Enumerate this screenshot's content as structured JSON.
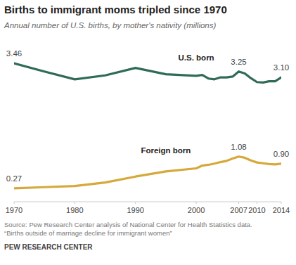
{
  "chart_data": {
    "type": "line",
    "title": "Births to immigrant moms tripled since 1970",
    "subtitle": "Annual number of U.S. births, by mother's nativity (millions)",
    "source": [
      "Source: Pew Research Center analysis of National Center for Health Statistics data.",
      "“Births outside of marriage decline for immigrant women”"
    ],
    "footer": "PEW RESEARCH CENTER",
    "x": [
      1970,
      1975,
      1980,
      1985,
      1990,
      1995,
      2000,
      2001,
      2002,
      2003,
      2004,
      2005,
      2006,
      2007,
      2008,
      2009,
      2010,
      2011,
      2012,
      2013,
      2014
    ],
    "series": [
      {
        "name": "U.S. born",
        "color": "#2f6b58",
        "values": [
          3.46,
          3.25,
          3.05,
          3.15,
          3.34,
          3.18,
          3.14,
          3.16,
          3.07,
          3.05,
          3.1,
          3.1,
          3.12,
          3.25,
          3.2,
          3.08,
          2.98,
          2.97,
          3.0,
          3.0,
          3.1
        ],
        "value_labels": [
          "3.46",
          null,
          null,
          null,
          null,
          null,
          null,
          null,
          null,
          null,
          null,
          null,
          null,
          "3.25",
          null,
          null,
          null,
          null,
          null,
          null,
          "3.10"
        ]
      },
      {
        "name": "Foreign born",
        "color": "#d5a93b",
        "values": [
          0.27,
          0.3,
          0.33,
          0.42,
          0.57,
          0.7,
          0.78,
          0.85,
          0.87,
          0.9,
          0.94,
          0.97,
          1.03,
          1.08,
          1.05,
          0.98,
          0.93,
          0.91,
          0.89,
          0.88,
          0.9
        ],
        "value_labels": [
          "0.27",
          null,
          null,
          null,
          null,
          null,
          null,
          null,
          null,
          null,
          null,
          null,
          null,
          "1.08",
          null,
          null,
          null,
          null,
          null,
          null,
          "0.90"
        ]
      }
    ],
    "xlim": [
      1970,
      2014
    ],
    "xticks": [
      1970,
      1980,
      1990,
      2000,
      2007,
      2010,
      2014
    ],
    "ylim": [
      0,
      3.8
    ],
    "yticks": [],
    "data_labels": true,
    "tick_labels": "x",
    "grid": false
  }
}
